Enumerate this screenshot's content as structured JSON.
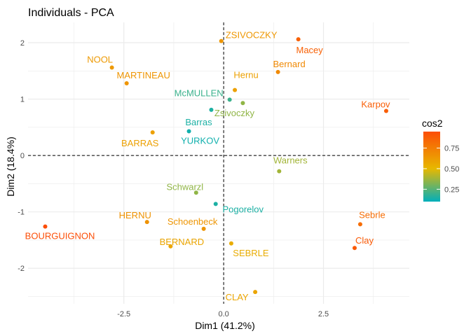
{
  "chart_data": {
    "type": "scatter",
    "title": "Individuals - PCA",
    "xlabel": "Dim1 (41.2%)",
    "ylabel": "Dim2 (18.4%)",
    "xlim": [
      -4.9,
      4.65
    ],
    "ylim": [
      -2.63,
      2.36
    ],
    "xticks": [
      -2.5,
      0.0,
      2.5
    ],
    "xtick_labels": [
      "-2.5",
      "0.0",
      "2.5"
    ],
    "yticks": [
      -2,
      -1,
      0,
      1,
      2
    ],
    "ytick_labels": [
      "-2",
      "-1",
      "0",
      "1",
      "2"
    ],
    "grid": true,
    "reference_lines": {
      "x": 0,
      "y": 0,
      "style": "dashed"
    },
    "color_scale": {
      "name": "cos2",
      "min": 0.1,
      "max": 0.95,
      "ticks": [
        0.25,
        0.5,
        0.75
      ],
      "tick_labels": [
        "0.25",
        "0.50",
        "0.75"
      ],
      "stops": [
        {
          "value": 0.1,
          "color": "#00AFBB"
        },
        {
          "value": 0.5,
          "color": "#E7B800"
        },
        {
          "value": 0.95,
          "color": "#FC4E07"
        }
      ]
    },
    "legend": {
      "position": "right"
    },
    "points": [
      {
        "label": "SEBRLE",
        "x": 0.19,
        "y": -1.56,
        "cos2": 0.55
      },
      {
        "label": "CLAY",
        "x": 0.79,
        "y": -2.42,
        "cos2": 0.58
      },
      {
        "label": "BERNARD",
        "x": -1.33,
        "y": -1.61,
        "cos2": 0.58
      },
      {
        "label": "YURKOV",
        "x": -0.87,
        "y": 0.43,
        "cos2": 0.13
      },
      {
        "label": "ZSIVOCZKY",
        "x": -0.06,
        "y": 2.03,
        "cos2": 0.64
      },
      {
        "label": "McMULLEN",
        "x": 0.15,
        "y": 0.99,
        "cos2": 0.2
      },
      {
        "label": "MARTINEAU",
        "x": -2.43,
        "y": 1.28,
        "cos2": 0.65
      },
      {
        "label": "HERNU",
        "x": -1.92,
        "y": -1.18,
        "cos2": 0.66
      },
      {
        "label": "BARRAS",
        "x": -1.78,
        "y": 0.41,
        "cos2": 0.6
      },
      {
        "label": "NOOL",
        "x": -2.8,
        "y": 1.56,
        "cos2": 0.63
      },
      {
        "label": "BOURGUIGNON",
        "x": -4.47,
        "y": -1.26,
        "cos2": 0.95
      },
      {
        "label": "Sebrle",
        "x": 3.42,
        "y": -1.22,
        "cos2": 0.82
      },
      {
        "label": "Clay",
        "x": 3.28,
        "y": -1.64,
        "cos2": 0.9
      },
      {
        "label": "Karpov",
        "x": 4.07,
        "y": 0.79,
        "cos2": 0.88
      },
      {
        "label": "Macey",
        "x": 1.87,
        "y": 2.06,
        "cos2": 0.87
      },
      {
        "label": "Warners",
        "x": 1.39,
        "y": -0.28,
        "cos2": 0.38
      },
      {
        "label": "Zsivoczky",
        "x": 0.48,
        "y": 0.93,
        "cos2": 0.35
      },
      {
        "label": "Hernu",
        "x": 0.28,
        "y": 1.16,
        "cos2": 0.6
      },
      {
        "label": "Bernard",
        "x": 1.36,
        "y": 1.48,
        "cos2": 0.7
      },
      {
        "label": "Schwarzl",
        "x": -0.69,
        "y": -0.66,
        "cos2": 0.35
      },
      {
        "label": "Pogorelov",
        "x": -0.2,
        "y": -0.86,
        "cos2": 0.15
      },
      {
        "label": "Schoenbeck",
        "x": -0.5,
        "y": -1.3,
        "cos2": 0.65
      },
      {
        "label": "Barras",
        "x": -0.31,
        "y": 0.81,
        "cos2": 0.15
      }
    ]
  }
}
